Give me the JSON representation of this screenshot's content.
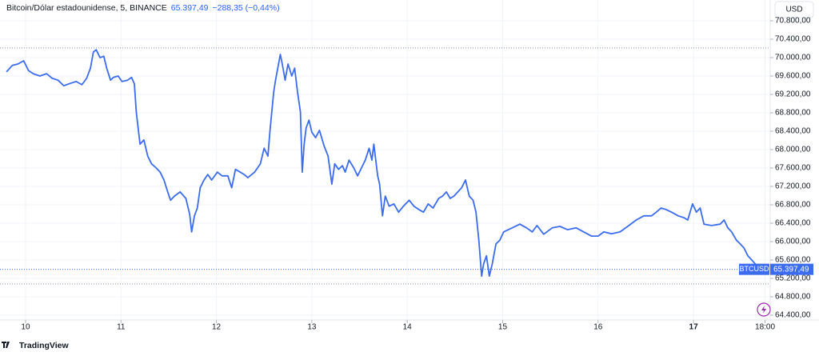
{
  "chart_data": {
    "type": "line",
    "header": {
      "symbol_title": "Bitcoin/Dólar estadounidense, 5, BINANCE",
      "last_label": "65.397,49",
      "change_label": "−288,35 (−0,44%)"
    },
    "currency": "USD",
    "branding": "TradingView",
    "x": [
      9.8,
      9.86,
      9.92,
      9.98,
      10.03,
      10.08,
      10.15,
      10.22,
      10.28,
      10.34,
      10.4,
      10.47,
      10.53,
      10.59,
      10.64,
      10.68,
      10.71,
      10.74,
      10.78,
      10.82,
      10.85,
      10.89,
      10.92,
      10.97,
      11.01,
      11.07,
      11.11,
      11.14,
      11.16,
      11.18,
      11.2,
      11.24,
      11.28,
      11.32,
      11.37,
      11.41,
      11.45,
      11.49,
      11.52,
      11.56,
      11.62,
      11.68,
      11.72,
      11.74,
      11.77,
      11.8,
      11.83,
      11.87,
      11.91,
      11.95,
      12.01,
      12.06,
      12.12,
      12.16,
      12.2,
      12.25,
      12.29,
      12.33,
      12.4,
      12.46,
      12.5,
      12.54,
      12.56,
      12.6,
      12.62,
      12.67,
      12.69,
      12.72,
      12.75,
      12.79,
      12.82,
      12.85,
      12.88,
      12.9,
      12.92,
      12.94,
      12.97,
      13.0,
      13.04,
      13.08,
      13.13,
      13.17,
      13.21,
      13.24,
      13.28,
      13.32,
      13.35,
      13.39,
      13.44,
      13.48,
      13.52,
      13.56,
      13.6,
      13.63,
      13.65,
      13.69,
      13.71,
      13.74,
      13.77,
      13.81,
      13.86,
      13.91,
      13.96,
      14.02,
      14.07,
      14.12,
      14.17,
      14.22,
      14.27,
      14.33,
      14.37,
      14.41,
      14.45,
      14.49,
      14.53,
      14.57,
      14.61,
      14.65,
      14.69,
      14.72,
      14.75,
      14.78,
      14.8,
      14.83,
      14.86,
      14.89,
      14.93,
      14.97,
      15.01,
      15.1,
      15.18,
      15.25,
      15.31,
      15.36,
      15.43,
      15.52,
      15.6,
      15.68,
      15.77,
      15.85,
      15.93,
      16.0,
      16.06,
      16.14,
      16.23,
      16.31,
      16.4,
      16.48,
      16.56,
      16.61,
      16.66,
      16.71,
      16.77,
      16.84,
      16.9,
      16.94,
      16.99,
      17.03,
      17.07,
      17.11,
      17.19,
      17.28,
      17.32,
      17.36,
      17.4,
      17.45,
      17.49,
      17.53,
      17.57,
      17.61,
      17.65,
      17.69,
      17.72
    ],
    "series": [
      {
        "name": "BTCUSD",
        "color": "#3b6bef",
        "values": [
          69690,
          69830,
          69860,
          69930,
          69720,
          69650,
          69600,
          69650,
          69550,
          69510,
          69390,
          69440,
          69480,
          69410,
          69550,
          69770,
          70120,
          70170,
          70000,
          70030,
          69770,
          69510,
          69570,
          69600,
          69480,
          69510,
          69570,
          69430,
          68820,
          68470,
          68120,
          68210,
          67860,
          67690,
          67600,
          67510,
          67340,
          67080,
          66900,
          66990,
          67080,
          66940,
          66590,
          66210,
          66560,
          66730,
          67170,
          67340,
          67460,
          67340,
          67510,
          67430,
          67430,
          67170,
          67570,
          67510,
          67460,
          67390,
          67510,
          67690,
          68030,
          67860,
          68380,
          69250,
          69510,
          70070,
          69860,
          69510,
          69860,
          69600,
          69770,
          69250,
          68820,
          67510,
          68120,
          68470,
          68640,
          68380,
          68260,
          68420,
          68070,
          67860,
          67250,
          67690,
          67570,
          67650,
          67510,
          67770,
          67600,
          67430,
          67600,
          67770,
          68030,
          67770,
          68120,
          67430,
          67250,
          66560,
          66990,
          66770,
          66820,
          66640,
          66770,
          66900,
          66770,
          66700,
          66640,
          66820,
          66730,
          66940,
          66990,
          67080,
          66940,
          66990,
          67080,
          67170,
          67340,
          66990,
          66900,
          66640,
          66030,
          65250,
          65510,
          65690,
          65250,
          65510,
          65950,
          66030,
          66210,
          66300,
          66380,
          66300,
          66210,
          66350,
          66160,
          66300,
          66330,
          66260,
          66300,
          66210,
          66120,
          66120,
          66210,
          66170,
          66210,
          66330,
          66470,
          66560,
          66560,
          66640,
          66730,
          66700,
          66640,
          66560,
          66520,
          66470,
          66820,
          66640,
          66730,
          66380,
          66350,
          66380,
          66470,
          66300,
          66210,
          66030,
          65950,
          65860,
          65690,
          65600,
          65510,
          65430,
          65400
        ]
      }
    ],
    "last_price": {
      "value": 65397.49,
      "label": "65.397,49"
    },
    "reference_lines": [
      70210,
      65080
    ],
    "xlim": [
      9.732,
      17.804
    ],
    "ylim": [
      64296,
      71252
    ],
    "xticks": [
      {
        "value": 10,
        "label": "10"
      },
      {
        "value": 11,
        "label": "11"
      },
      {
        "value": 12,
        "label": "12"
      },
      {
        "value": 13,
        "label": "13"
      },
      {
        "value": 14,
        "label": "14"
      },
      {
        "value": 15,
        "label": "15"
      },
      {
        "value": 16,
        "label": "16"
      },
      {
        "value": 17,
        "label": "17"
      },
      {
        "value": 17.75,
        "label": "18:00"
      }
    ],
    "yticks": [
      {
        "value": 64400,
        "label": "64.400,00"
      },
      {
        "value": 64800,
        "label": "64.800,00"
      },
      {
        "value": 65200,
        "label": "65.200,00"
      },
      {
        "value": 65600,
        "label": "65.600,00"
      },
      {
        "value": 66000,
        "label": "66.000,00"
      },
      {
        "value": 66400,
        "label": "66.400,00"
      },
      {
        "value": 66800,
        "label": "66.800,00"
      },
      {
        "value": 67200,
        "label": "67.200,00"
      },
      {
        "value": 67600,
        "label": "67.600,00"
      },
      {
        "value": 68000,
        "label": "68.000,00"
      },
      {
        "value": 68400,
        "label": "68.400,00"
      },
      {
        "value": 68800,
        "label": "68.800,00"
      },
      {
        "value": 69200,
        "label": "69.200,00"
      },
      {
        "value": 69600,
        "label": "69.600,00"
      },
      {
        "value": 70000,
        "label": "70.000,00"
      },
      {
        "value": 70400,
        "label": "70.400,00"
      },
      {
        "value": 70800,
        "label": "70.800,00"
      }
    ],
    "grid": true
  }
}
